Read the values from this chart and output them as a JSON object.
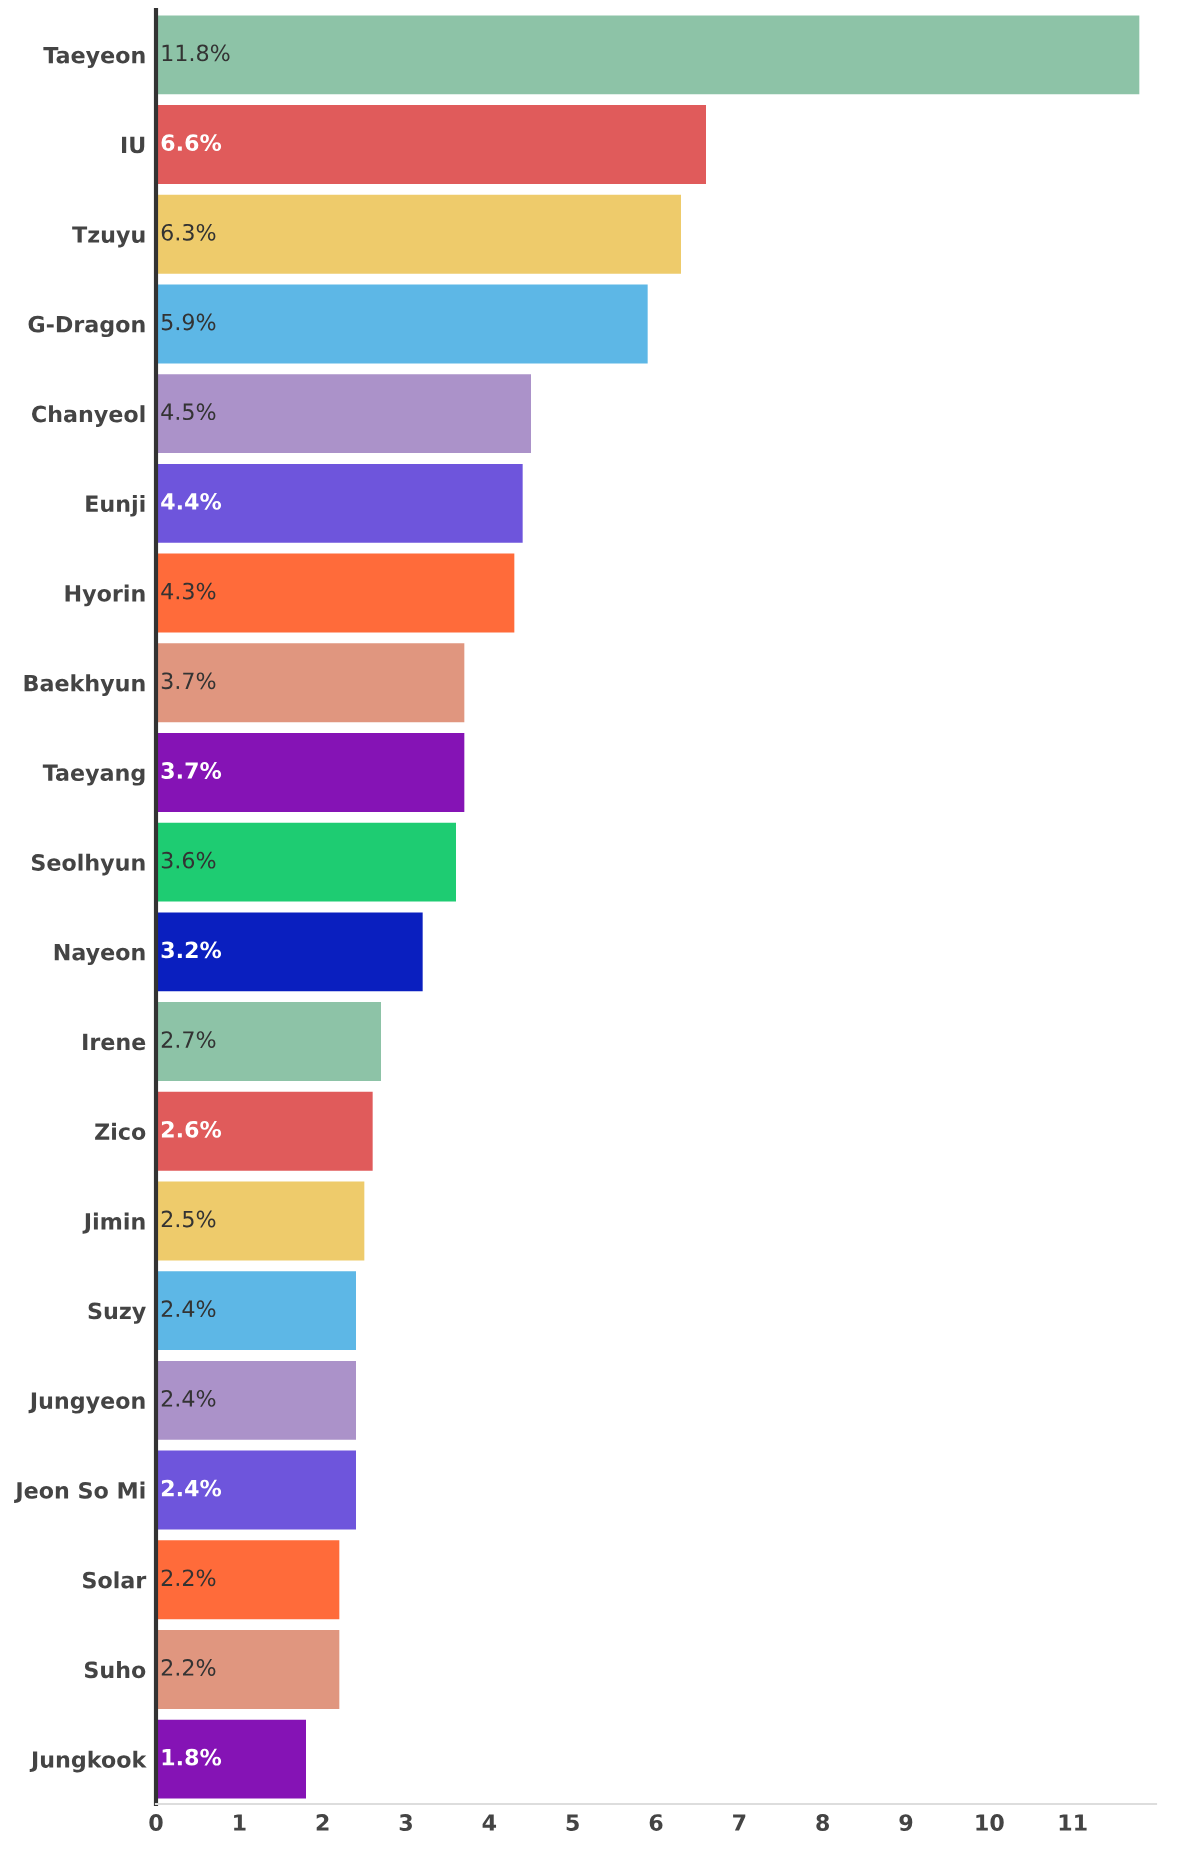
{
  "chart_data": {
    "type": "bar",
    "orientation": "horizontal",
    "categories": [
      "Taeyeon",
      "IU",
      "Tzuyu",
      "G-Dragon",
      "Chanyeol",
      "Eunji",
      "Hyorin",
      "Baekhyun",
      "Taeyang",
      "Seolhyun",
      "Nayeon",
      "Irene",
      "Zico",
      "Jimin",
      "Suzy",
      "Jungyeon",
      "Jeon So Mi",
      "Solar",
      "Suho",
      "Jungkook"
    ],
    "values": [
      11.8,
      6.6,
      6.3,
      5.9,
      4.5,
      4.4,
      4.3,
      3.7,
      3.7,
      3.6,
      3.2,
      2.7,
      2.6,
      2.5,
      2.4,
      2.4,
      2.4,
      2.2,
      2.2,
      1.8
    ],
    "value_labels": [
      "11.8%",
      "6.6%",
      "6.3%",
      "5.9%",
      "4.5%",
      "4.4%",
      "4.3%",
      "3.7%",
      "3.7%",
      "3.6%",
      "3.2%",
      "2.7%",
      "2.6%",
      "2.5%",
      "2.4%",
      "2.4%",
      "2.4%",
      "2.2%",
      "2.2%",
      "1.8%"
    ],
    "colors": [
      "#8dc3a7",
      "#e05b5b",
      "#eecb6b",
      "#5db7e6",
      "#ab92c9",
      "#6e55dc",
      "#ff6b3a",
      "#e0967f",
      "#8513b5",
      "#1ecc72",
      "#0a1fbf",
      "#8dc3a7",
      "#e05b5b",
      "#eecb6b",
      "#5db7e6",
      "#ab92c9",
      "#6e55dc",
      "#ff6b3a",
      "#e0967f",
      "#8513b5"
    ],
    "xlim": [
      0,
      12
    ],
    "xticks": [
      0,
      1,
      2,
      3,
      4,
      5,
      6,
      7,
      8,
      9,
      10,
      11
    ],
    "grid": false,
    "legend": false
  }
}
